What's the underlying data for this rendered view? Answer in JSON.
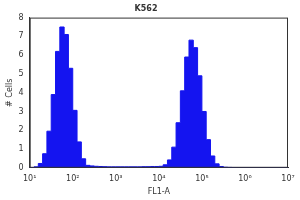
{
  "chart_data": {
    "type": "histogram",
    "title": "K562",
    "x_label": "FL1-A",
    "y_label": "# Cells",
    "log": "x",
    "bins": [
      10,
      12.59,
      15.85,
      19.95,
      25.12,
      31.62,
      39.81,
      50.12,
      63.1,
      79.43,
      100,
      125.9,
      158.5,
      199.5,
      251.2,
      316.2,
      398.1,
      501.2,
      631,
      794.3,
      1000,
      1259,
      1585,
      1995,
      2512,
      3162,
      3981,
      5012,
      6310,
      7943,
      10000,
      12590,
      15850,
      19950,
      25120,
      31620,
      39810,
      50120,
      63100,
      79430,
      100000,
      125900,
      158500,
      199500,
      251200,
      316200,
      398100,
      501200,
      631000,
      794300,
      1000000,
      1259000,
      1585000,
      1995000,
      2512000,
      3162000,
      3981000,
      5012000,
      6310000,
      7943000,
      10000000
    ],
    "counts": [
      0,
      0.01,
      0.05,
      0.23,
      0.75,
      1.95,
      3.9,
      6.2,
      7.5,
      7.1,
      5.3,
      3.06,
      1.38,
      0.48,
      0.13,
      0.1,
      0.08,
      0.07,
      0.06,
      0.05,
      0.05,
      0.05,
      0.05,
      0.05,
      0.05,
      0.05,
      0.05,
      0.06,
      0.06,
      0.07,
      0.07,
      0.08,
      0.16,
      0.42,
      1.1,
      2.4,
      4.1,
      5.9,
      6.8,
      6.4,
      4.9,
      3.0,
      1.5,
      0.63,
      0.21,
      0.07,
      0.03,
      0.02,
      0.01,
      0,
      0,
      0,
      0,
      0,
      0,
      0,
      0,
      0,
      0,
      0
    ],
    "color": "#1414f0",
    "xlim": [
      10,
      10000000
    ],
    "xticks": [
      {
        "value": 10,
        "label": "10¹"
      },
      {
        "value": 100,
        "label": "10²"
      },
      {
        "value": 1000,
        "label": "10³"
      },
      {
        "value": 10000,
        "label": "10⁴"
      },
      {
        "value": 100000,
        "label": "10⁵"
      },
      {
        "value": 1000000,
        "label": "10⁶"
      },
      {
        "value": 10000000,
        "label": "10⁷"
      }
    ],
    "ylim": [
      0,
      8
    ],
    "yticks": [
      0,
      1,
      2,
      3,
      4,
      5,
      6,
      7,
      8
    ],
    "grid": false
  }
}
